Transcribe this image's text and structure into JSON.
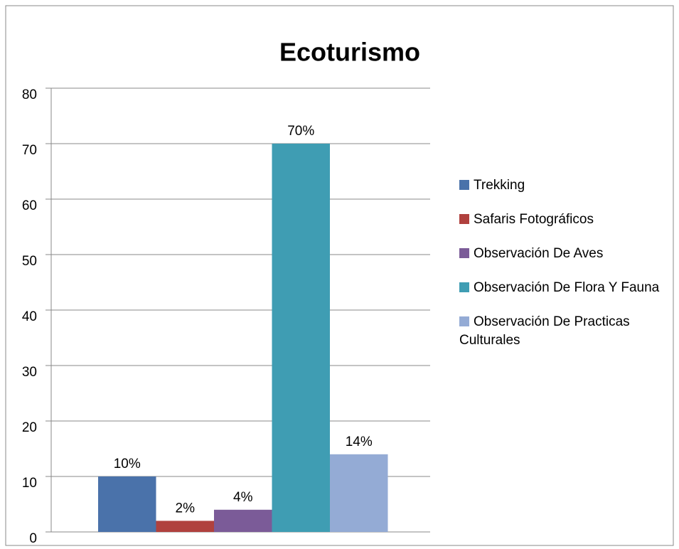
{
  "chart_data": {
    "type": "bar",
    "title": "Ecoturismo",
    "categories": [
      null
    ],
    "series": [
      {
        "name": "Trekking",
        "color": "#4a72aa",
        "values": [
          10
        ],
        "value_labels": [
          "10%"
        ]
      },
      {
        "name": "Safaris Fotográficos",
        "color": "#b0413e",
        "values": [
          2
        ],
        "value_labels": [
          "2%"
        ]
      },
      {
        "name": "Observación De Aves",
        "color": "#7b5b98",
        "values": [
          4
        ],
        "value_labels": [
          "4%"
        ]
      },
      {
        "name": "Observación De Flora Y Fauna",
        "color": "#3f9db3",
        "values": [
          70
        ],
        "value_labels": [
          "70%"
        ]
      },
      {
        "name": "Observación De Practicas Culturales",
        "color": "#94abd5",
        "values": [
          14
        ],
        "value_labels": [
          "14%"
        ]
      }
    ],
    "ylim": [
      0,
      80
    ],
    "yticks": [
      0,
      10,
      20,
      30,
      40,
      50,
      60,
      70,
      80
    ],
    "grid": true,
    "legend": "right"
  }
}
